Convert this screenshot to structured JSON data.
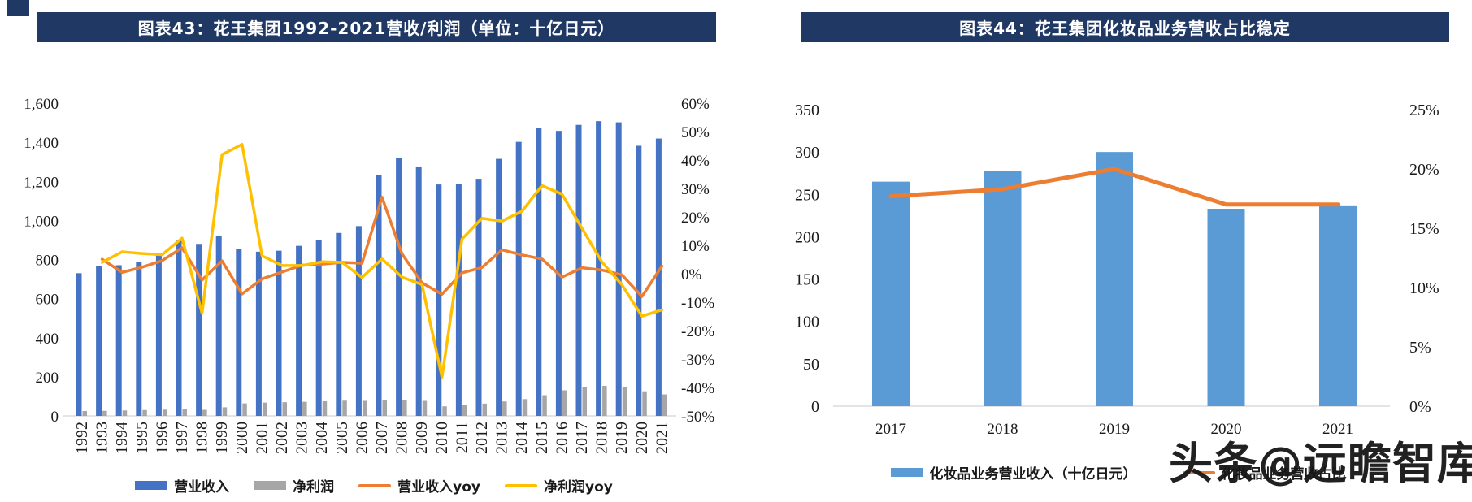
{
  "watermark": "头条@远瞻智库",
  "chart_data": [
    {
      "type": "bar+line combo",
      "title": "图表43：花王集团1992-2021营收/利润（单位：十亿日元）",
      "categories": [
        "1992",
        "1993",
        "1994",
        "1995",
        "1996",
        "1997",
        "1998",
        "1999",
        "2000",
        "2001",
        "2002",
        "2003",
        "2004",
        "2005",
        "2006",
        "2007",
        "2008",
        "2009",
        "2010",
        "2011",
        "2012",
        "2013",
        "2014",
        "2015",
        "2016",
        "2017",
        "2018",
        "2019",
        "2020",
        "2021"
      ],
      "left_axis": {
        "min": 0,
        "max": 1600,
        "ticks": [
          "1,600",
          "1,400",
          "1,200",
          "1,000",
          "800",
          "600",
          "400",
          "200",
          "0"
        ]
      },
      "right_axis": {
        "min": -50,
        "max": 60,
        "ticks": [
          "60%",
          "50%",
          "40%",
          "30%",
          "20%",
          "10%",
          "0%",
          "-10%",
          "-20%",
          "-30%",
          "-40%",
          "-50%"
        ]
      },
      "grid": false,
      "legend_position": "bottom",
      "series": [
        {
          "name": "营业收入",
          "type": "bar",
          "axis": "left",
          "color": "#4472C4",
          "values": [
            730,
            767,
            771,
            789,
            825,
            900,
            880,
            920,
            855,
            840,
            845,
            870,
            900,
            936,
            971,
            1232,
            1318,
            1276,
            1184,
            1187,
            1213,
            1315,
            1402,
            1475,
            1458,
            1489,
            1508,
            1502,
            1382,
            1419
          ]
        },
        {
          "name": "净利润",
          "type": "bar",
          "axis": "left",
          "color": "#A6A6A6",
          "values": [
            25,
            26,
            28,
            30,
            32,
            36,
            31,
            44,
            64,
            68,
            70,
            72,
            75,
            78,
            77,
            81,
            80,
            77,
            49,
            55,
            63,
            74,
            86,
            106,
            131,
            148,
            154,
            148,
            126,
            110
          ]
        },
        {
          "name": "营业收入yoy",
          "type": "line",
          "axis": "right",
          "color": "#ED7D31",
          "values": [
            null,
            5.1,
            0.5,
            2.3,
            4.6,
            9.1,
            -2.2,
            4.5,
            -7.1,
            -1.8,
            0.6,
            3.0,
            3.4,
            4.0,
            3.7,
            26.9,
            7.0,
            -3.2,
            -7.2,
            0.3,
            2.2,
            8.4,
            6.6,
            5.2,
            -1.2,
            2.1,
            1.3,
            -0.4,
            -8.0,
            2.7
          ]
        },
        {
          "name": "净利润yoy",
          "type": "line",
          "axis": "right",
          "color": "#FFC000",
          "values": [
            null,
            4.0,
            7.7,
            7.1,
            6.7,
            12.5,
            -13.9,
            41.9,
            45.5,
            6.3,
            2.9,
            2.9,
            4.2,
            4.0,
            -1.3,
            5.2,
            -1.2,
            -3.8,
            -36.4,
            12.2,
            19.5,
            18.5,
            22.0,
            31.0,
            28.0,
            16.0,
            4.1,
            -3.9,
            -14.9,
            -12.7
          ]
        }
      ]
    },
    {
      "type": "bar+line combo",
      "title": "图表44：花王集团化妆品业务营收占比稳定",
      "categories": [
        "2017",
        "2018",
        "2019",
        "2020",
        "2021"
      ],
      "left_axis": {
        "min": 0,
        "max": 350,
        "ticks": [
          "350",
          "300",
          "250",
          "200",
          "150",
          "100",
          "50",
          "0"
        ]
      },
      "right_axis": {
        "min": 0,
        "max": 25,
        "ticks": [
          "25%",
          "20%",
          "15%",
          "10%",
          "5%",
          "0%"
        ]
      },
      "grid": false,
      "legend_position": "bottom",
      "series": [
        {
          "name": "化妆品业务营业收入（十亿日元）",
          "type": "bar",
          "axis": "left",
          "color": "#5B9BD5",
          "values": [
            265,
            278,
            300,
            233,
            237
          ]
        },
        {
          "name": "化妆品业务营收占比",
          "type": "line",
          "axis": "right",
          "color": "#ED7D31",
          "values": [
            17.7,
            18.3,
            20.0,
            17.0,
            17.0
          ]
        }
      ]
    }
  ]
}
